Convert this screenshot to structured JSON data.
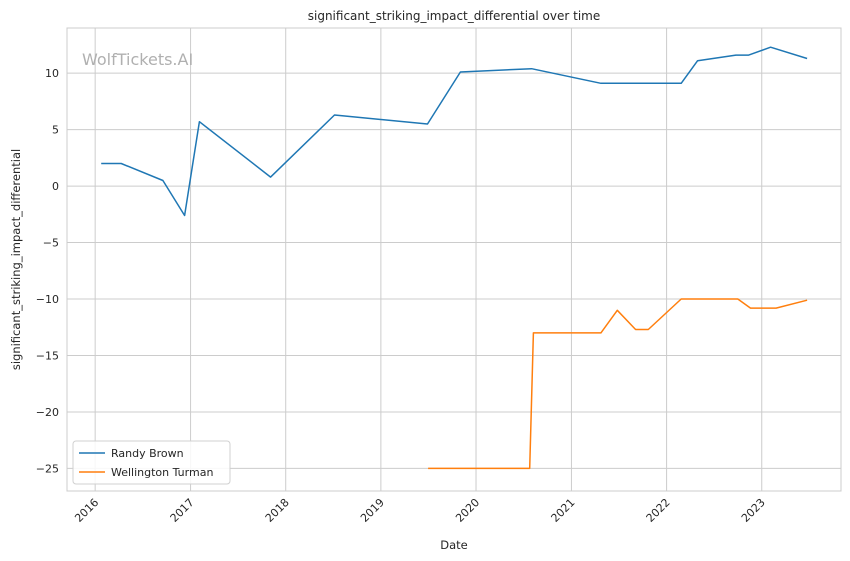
{
  "chart_data": {
    "type": "line",
    "title": "significant_striking_impact_differential over time",
    "xlabel": "Date",
    "ylabel": "significant_striking_impact_differential",
    "watermark": "WolfTickets.AI",
    "xlim": [
      "2015-09-15",
      "2023-11-01"
    ],
    "ylim": [
      -27,
      14
    ],
    "x_ticks": [
      "2016-01-01",
      "2017-01-01",
      "2018-01-01",
      "2019-01-01",
      "2020-01-01",
      "2021-01-01",
      "2022-01-01",
      "2023-01-01"
    ],
    "x_tick_labels": [
      "2016",
      "2017",
      "2018",
      "2019",
      "2020",
      "2021",
      "2022",
      "2023"
    ],
    "y_ticks": [
      10,
      5,
      0,
      -5,
      -10,
      -15,
      -20,
      -25
    ],
    "y_tick_labels": [
      "10",
      "5",
      "0",
      "−5",
      "−10",
      "−15",
      "−20",
      "−25"
    ],
    "grid": true,
    "legend_position": "lower-left",
    "series": [
      {
        "name": "Randy Brown",
        "color": "#1f77b4",
        "points": [
          {
            "x": "2016-01-24",
            "y": 2.0
          },
          {
            "x": "2016-04-10",
            "y": 2.0
          },
          {
            "x": "2016-09-17",
            "y": 0.5
          },
          {
            "x": "2016-12-09",
            "y": -2.6
          },
          {
            "x": "2017-02-04",
            "y": 5.7
          },
          {
            "x": "2017-11-04",
            "y": 0.8
          },
          {
            "x": "2018-07-07",
            "y": 6.3
          },
          {
            "x": "2019-06-29",
            "y": 5.5
          },
          {
            "x": "2019-11-02",
            "y": 10.1
          },
          {
            "x": "2020-08-01",
            "y": 10.4
          },
          {
            "x": "2021-04-24",
            "y": 9.1
          },
          {
            "x": "2021-09-18",
            "y": 9.1
          },
          {
            "x": "2022-02-26",
            "y": 9.1
          },
          {
            "x": "2022-04-30",
            "y": 11.1
          },
          {
            "x": "2022-09-24",
            "y": 11.6
          },
          {
            "x": "2022-11-12",
            "y": 11.6
          },
          {
            "x": "2023-02-04",
            "y": 12.3
          },
          {
            "x": "2023-06-24",
            "y": 11.3
          }
        ]
      },
      {
        "name": "Wellington Turman",
        "color": "#ff7f0e",
        "points": [
          {
            "x": "2019-07-01",
            "y": -25.0
          },
          {
            "x": "2020-07-25",
            "y": -25.0
          },
          {
            "x": "2020-08-08",
            "y": -13.0
          },
          {
            "x": "2021-04-24",
            "y": -13.0
          },
          {
            "x": "2021-06-26",
            "y": -11.0
          },
          {
            "x": "2021-09-04",
            "y": -12.7
          },
          {
            "x": "2021-10-23",
            "y": -12.7
          },
          {
            "x": "2022-02-26",
            "y": -10.0
          },
          {
            "x": "2022-10-01",
            "y": -10.0
          },
          {
            "x": "2022-11-19",
            "y": -10.8
          },
          {
            "x": "2023-02-25",
            "y": -10.8
          },
          {
            "x": "2023-06-24",
            "y": -10.1
          }
        ]
      }
    ]
  }
}
